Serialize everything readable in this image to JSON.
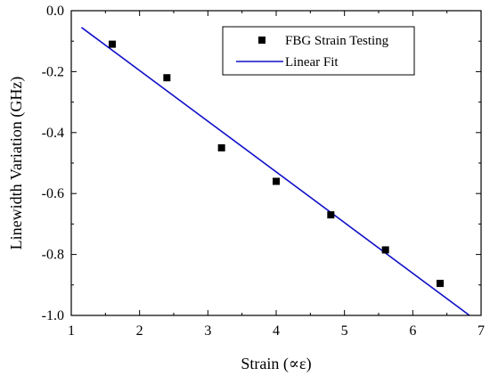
{
  "chart_data": {
    "type": "scatter",
    "title": "",
    "xlabel": "Strain (∝ε)",
    "ylabel": "Linewidth Variation (GHz)",
    "xlim": [
      1,
      7
    ],
    "ylim": [
      -1.0,
      0.0
    ],
    "x_ticks": [
      "1",
      "2",
      "3",
      "4",
      "5",
      "6",
      "7"
    ],
    "y_ticks": [
      "0.0",
      "-0.2",
      "-0.4",
      "-0.6",
      "-0.8",
      "-1.0"
    ],
    "grid": false,
    "legend_position": "top-right",
    "series": [
      {
        "name": "FBG Strain Testing",
        "kind": "scatter",
        "marker": "square",
        "color": "#000000",
        "x": [
          1.6,
          2.4,
          3.2,
          4.0,
          4.8,
          5.6,
          6.4
        ],
        "y": [
          -0.11,
          -0.22,
          -0.45,
          -0.56,
          -0.67,
          -0.785,
          -0.895
        ]
      },
      {
        "name": "Linear Fit",
        "kind": "line",
        "color": "#1010c8",
        "x": [
          1.15,
          6.83
        ],
        "y": [
          -0.055,
          -1.0
        ]
      }
    ]
  }
}
